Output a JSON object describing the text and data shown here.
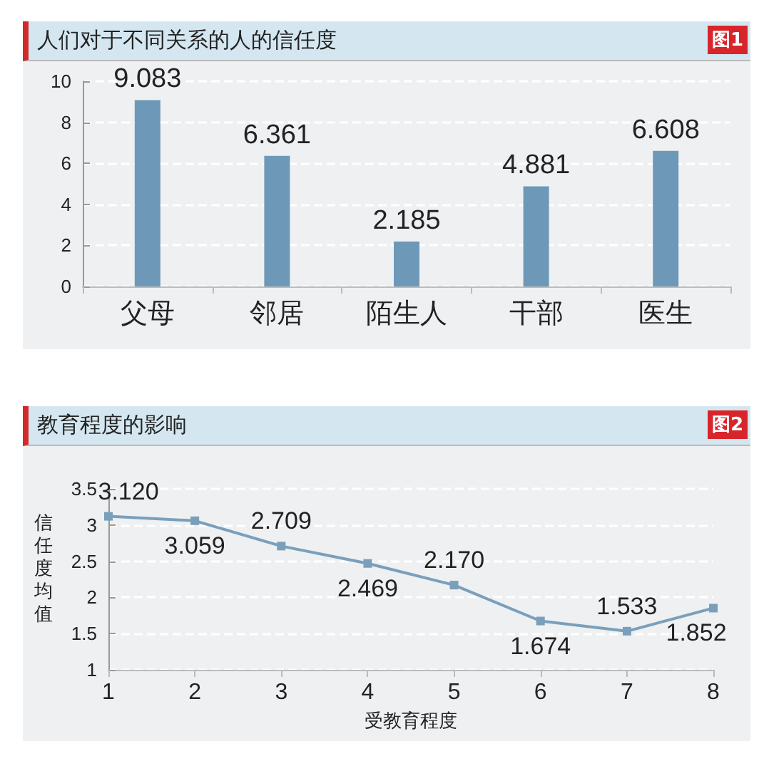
{
  "chart_data": [
    {
      "type": "bar",
      "title": "人们对于不同关系的人的信任度",
      "annotations": [
        "图1"
      ],
      "categories": [
        "父母",
        "邻居",
        "陌生人",
        "干部",
        "医生"
      ],
      "values": [
        9.083,
        6.361,
        2.185,
        4.881,
        6.608
      ],
      "color": "#6e98b8",
      "ylim": [
        0,
        10
      ],
      "yticks": [
        0,
        2,
        4,
        6,
        8,
        10
      ],
      "grid": "y",
      "data_labels": true
    },
    {
      "type": "line",
      "title": "教育程度的影响",
      "annotations": [
        "图2"
      ],
      "xlabel": "受教育程度",
      "ylabel": "信任度均值",
      "x": [
        1,
        2,
        3,
        4,
        5,
        6,
        7,
        8
      ],
      "values": [
        3.12,
        3.059,
        2.709,
        2.469,
        2.17,
        1.674,
        1.533,
        1.852
      ],
      "value_labels": [
        "3.120",
        "3.059",
        "2.709",
        "2.469",
        "2.170",
        "1.674",
        "1.533",
        "1.852"
      ],
      "color": "#7a9fbb",
      "xlim": [
        1,
        8
      ],
      "xticks": [
        1,
        2,
        3,
        4,
        5,
        6,
        7,
        8
      ],
      "ylim": [
        1,
        3.5
      ],
      "yticks": [
        1,
        1.5,
        2,
        2.5,
        3,
        3.5
      ],
      "grid": "y",
      "marker": "square",
      "line_style": "solid",
      "data_labels": true
    }
  ]
}
